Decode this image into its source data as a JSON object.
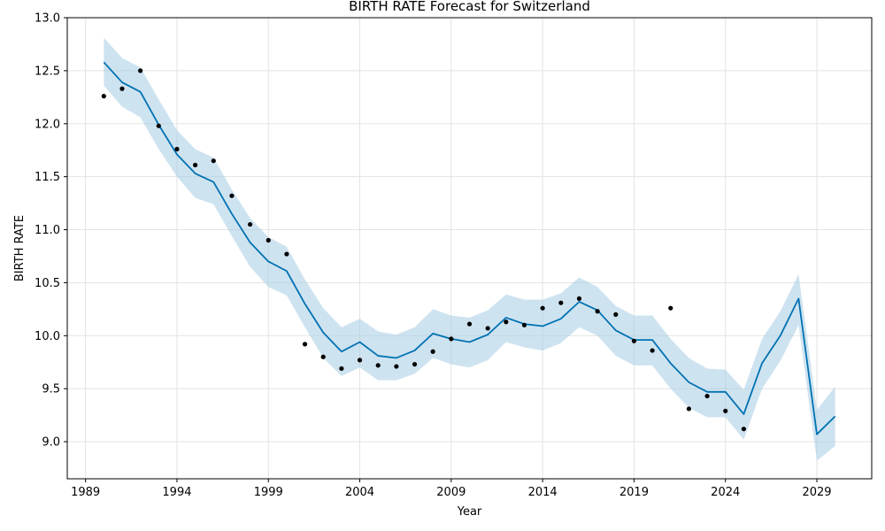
{
  "chart_data": {
    "type": "line",
    "title": "BIRTH RATE Forecast for Switzerland",
    "xlabel": "Year",
    "ylabel": "BIRTH RATE",
    "xlim": [
      1988,
      2032
    ],
    "ylim": [
      8.65,
      13.0
    ],
    "grid": true,
    "x_ticks": [
      1989,
      1994,
      1999,
      2004,
      2009,
      2014,
      2019,
      2024,
      2029
    ],
    "y_ticks": [
      9.0,
      9.5,
      10.0,
      10.5,
      11.0,
      11.5,
      12.0,
      12.5,
      13.0
    ],
    "colors": {
      "forecast": "#0072b2",
      "interval": "#a6cce3",
      "actual": "#000000"
    },
    "series": [
      {
        "role": "forecast",
        "x": [
          1990,
          1991,
          1992,
          1993,
          1994,
          1995,
          1996,
          1997,
          1998,
          1999,
          2000,
          2001,
          2002,
          2003,
          2004,
          2005,
          2006,
          2007,
          2008,
          2009,
          2010,
          2011,
          2012,
          2013,
          2014,
          2015,
          2016,
          2017,
          2018,
          2019,
          2020,
          2021,
          2022,
          2023,
          2024,
          2025,
          2026,
          2027,
          2028,
          2029,
          2030
        ],
        "y": [
          12.58,
          12.39,
          12.3,
          11.99,
          11.71,
          11.53,
          11.45,
          11.15,
          10.88,
          10.7,
          10.61,
          10.3,
          10.03,
          9.85,
          9.94,
          9.81,
          9.79,
          9.86,
          10.02,
          9.97,
          9.94,
          10.01,
          10.17,
          10.11,
          10.09,
          10.16,
          10.32,
          10.24,
          10.05,
          9.96,
          9.96,
          9.74,
          9.56,
          9.47,
          9.47,
          9.26,
          9.74,
          10.0,
          10.35,
          9.07,
          9.24
        ]
      },
      {
        "role": "interval",
        "x": [
          1990,
          1991,
          1992,
          1993,
          1994,
          1995,
          1996,
          1997,
          1998,
          1999,
          2000,
          2001,
          2002,
          2003,
          2004,
          2005,
          2006,
          2007,
          2008,
          2009,
          2010,
          2011,
          2012,
          2013,
          2014,
          2015,
          2016,
          2017,
          2018,
          2019,
          2020,
          2021,
          2022,
          2023,
          2024,
          2025,
          2026,
          2027,
          2028,
          2029,
          2030
        ],
        "lower": [
          12.36,
          12.16,
          12.06,
          11.76,
          11.5,
          11.3,
          11.24,
          10.94,
          10.65,
          10.46,
          10.38,
          10.08,
          9.79,
          9.62,
          9.7,
          9.58,
          9.58,
          9.64,
          9.79,
          9.73,
          9.7,
          9.77,
          9.94,
          9.89,
          9.86,
          9.93,
          10.08,
          10.0,
          9.81,
          9.72,
          9.72,
          9.5,
          9.32,
          9.23,
          9.23,
          9.02,
          9.5,
          9.76,
          10.1,
          8.82,
          8.96
        ],
        "upper": [
          12.81,
          12.62,
          12.53,
          12.23,
          11.94,
          11.76,
          11.68,
          11.38,
          11.11,
          10.93,
          10.84,
          10.53,
          10.26,
          10.08,
          10.16,
          10.04,
          10.01,
          10.08,
          10.25,
          10.19,
          10.17,
          10.24,
          10.39,
          10.34,
          10.34,
          10.4,
          10.55,
          10.46,
          10.28,
          10.19,
          10.19,
          9.97,
          9.79,
          9.69,
          9.68,
          9.49,
          9.97,
          10.23,
          10.58,
          9.3,
          9.52
        ]
      },
      {
        "role": "actual",
        "x": [
          1990,
          1991,
          1992,
          1993,
          1994,
          1995,
          1996,
          1997,
          1998,
          1999,
          2000,
          2001,
          2002,
          2003,
          2004,
          2005,
          2006,
          2007,
          2008,
          2009,
          2010,
          2011,
          2012,
          2013,
          2014,
          2015,
          2016,
          2017,
          2018,
          2019,
          2020,
          2021,
          2022,
          2023,
          2024,
          2025
        ],
        "y": [
          12.26,
          12.33,
          12.5,
          11.98,
          11.76,
          11.61,
          11.65,
          11.32,
          11.05,
          10.9,
          10.77,
          9.92,
          9.8,
          9.69,
          9.77,
          9.72,
          9.71,
          9.73,
          9.85,
          9.97,
          10.11,
          10.07,
          10.13,
          10.1,
          10.26,
          10.31,
          10.35,
          10.23,
          10.2,
          9.95,
          9.86,
          10.26,
          9.31,
          9.43,
          9.29,
          9.12
        ]
      }
    ]
  }
}
